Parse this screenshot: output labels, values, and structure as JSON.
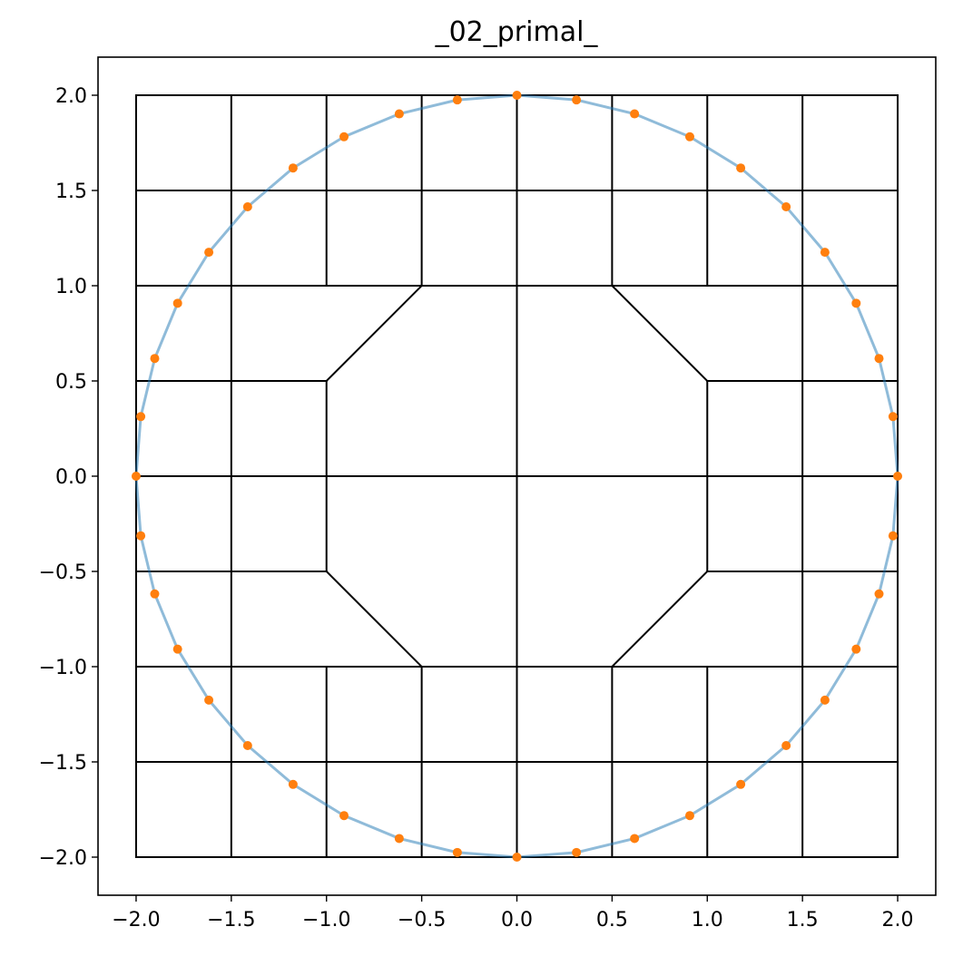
{
  "chart_data": {
    "type": "scatter",
    "title": "_02_primal_",
    "xlabel": "",
    "ylabel": "",
    "xlim": [
      -2.2,
      2.2
    ],
    "ylim": [
      -2.2,
      2.2
    ],
    "x_ticks": [
      -2.0,
      -1.5,
      -1.0,
      -0.5,
      0.0,
      0.5,
      1.0,
      1.5,
      2.0
    ],
    "y_ticks": [
      -2.0,
      -1.5,
      -1.0,
      -0.5,
      0.0,
      0.5,
      1.0,
      1.5,
      2.0
    ],
    "x_tick_labels": [
      "−2.0",
      "−1.5",
      "−1.0",
      "−0.5",
      "0.0",
      "0.5",
      "1.0",
      "1.5",
      "2.0"
    ],
    "y_tick_labels": [
      "−2.0",
      "−1.5",
      "−1.0",
      "−0.5",
      "0.0",
      "0.5",
      "1.0",
      "1.5",
      "2.0"
    ],
    "grid": false,
    "colors": {
      "circle_line": "#1f77b4",
      "nodes": "#ff7f0e",
      "mesh": "#000000"
    },
    "mesh_segments": [
      [
        [
          -2.0,
          2.0
        ],
        [
          2.0,
          2.0
        ]
      ],
      [
        [
          -2.0,
          1.5
        ],
        [
          2.0,
          1.5
        ]
      ],
      [
        [
          -2.0,
          1.0
        ],
        [
          -0.5,
          1.0
        ]
      ],
      [
        [
          0.5,
          1.0
        ],
        [
          2.0,
          1.0
        ]
      ],
      [
        [
          -2.0,
          0.5
        ],
        [
          -1.0,
          0.5
        ]
      ],
      [
        [
          1.0,
          0.5
        ],
        [
          2.0,
          0.5
        ]
      ],
      [
        [
          -2.0,
          0.0
        ],
        [
          2.0,
          0.0
        ]
      ],
      [
        [
          -2.0,
          -0.5
        ],
        [
          -1.0,
          -0.5
        ]
      ],
      [
        [
          1.0,
          -0.5
        ],
        [
          2.0,
          -0.5
        ]
      ],
      [
        [
          -2.0,
          -1.0
        ],
        [
          -0.5,
          -1.0
        ]
      ],
      [
        [
          0.5,
          -1.0
        ],
        [
          2.0,
          -1.0
        ]
      ],
      [
        [
          -2.0,
          -1.5
        ],
        [
          2.0,
          -1.5
        ]
      ],
      [
        [
          -2.0,
          -2.0
        ],
        [
          2.0,
          -2.0
        ]
      ],
      [
        [
          -0.5,
          1.0
        ],
        [
          0.5,
          1.0
        ]
      ],
      [
        [
          -0.5,
          -1.0
        ],
        [
          0.5,
          -1.0
        ]
      ],
      [
        [
          -2.0,
          -2.0
        ],
        [
          -2.0,
          2.0
        ]
      ],
      [
        [
          -1.5,
          -2.0
        ],
        [
          -1.5,
          2.0
        ]
      ],
      [
        [
          -1.0,
          -2.0
        ],
        [
          -1.0,
          -1.0
        ]
      ],
      [
        [
          -1.0,
          1.0
        ],
        [
          -1.0,
          2.0
        ]
      ],
      [
        [
          -1.0,
          0.5
        ],
        [
          -1.0,
          -0.5
        ]
      ],
      [
        [
          -0.5,
          -2.0
        ],
        [
          -0.5,
          -1.0
        ]
      ],
      [
        [
          -0.5,
          1.0
        ],
        [
          -0.5,
          2.0
        ]
      ],
      [
        [
          0.0,
          -2.0
        ],
        [
          0.0,
          2.0
        ]
      ],
      [
        [
          0.5,
          -2.0
        ],
        [
          0.5,
          -1.0
        ]
      ],
      [
        [
          0.5,
          1.0
        ],
        [
          0.5,
          2.0
        ]
      ],
      [
        [
          1.0,
          -2.0
        ],
        [
          1.0,
          -1.0
        ]
      ],
      [
        [
          1.0,
          1.0
        ],
        [
          1.0,
          2.0
        ]
      ],
      [
        [
          1.0,
          0.5
        ],
        [
          1.0,
          -0.5
        ]
      ],
      [
        [
          1.5,
          -2.0
        ],
        [
          1.5,
          2.0
        ]
      ],
      [
        [
          2.0,
          -2.0
        ],
        [
          2.0,
          2.0
        ]
      ],
      [
        [
          -1.0,
          0.5
        ],
        [
          -0.5,
          1.0
        ]
      ],
      [
        [
          0.5,
          1.0
        ],
        [
          1.0,
          0.5
        ]
      ],
      [
        [
          -1.0,
          -0.5
        ],
        [
          -0.5,
          -1.0
        ]
      ],
      [
        [
          0.5,
          -1.0
        ],
        [
          1.0,
          -0.5
        ]
      ]
    ],
    "circle_nodes": {
      "x": [
        2.0,
        1.9754,
        1.9021,
        1.782,
        1.618,
        1.4142,
        1.1756,
        0.908,
        0.618,
        0.3129,
        0.0,
        -0.3129,
        -0.618,
        -0.908,
        -1.1756,
        -1.4142,
        -1.618,
        -1.782,
        -1.9021,
        -1.9754,
        -2.0,
        -1.9754,
        -1.9021,
        -1.782,
        -1.618,
        -1.4142,
        -1.1756,
        -0.908,
        -0.618,
        -0.3129,
        0.0,
        0.3129,
        0.618,
        0.908,
        1.1756,
        1.4142,
        1.618,
        1.782,
        1.9021,
        1.9754
      ],
      "y": [
        0.0,
        0.3129,
        0.618,
        0.908,
        1.1756,
        1.4142,
        1.618,
        1.782,
        1.9021,
        1.9754,
        2.0,
        1.9754,
        1.9021,
        1.782,
        1.618,
        1.4142,
        1.1756,
        0.908,
        0.618,
        0.3129,
        0.0,
        -0.3129,
        -0.618,
        -0.908,
        -1.1756,
        -1.4142,
        -1.618,
        -1.782,
        -1.9021,
        -1.9754,
        -2.0,
        -1.9754,
        -1.9021,
        -1.782,
        -1.618,
        -1.4142,
        -1.1756,
        -0.908,
        -0.618,
        -0.3129
      ]
    }
  }
}
